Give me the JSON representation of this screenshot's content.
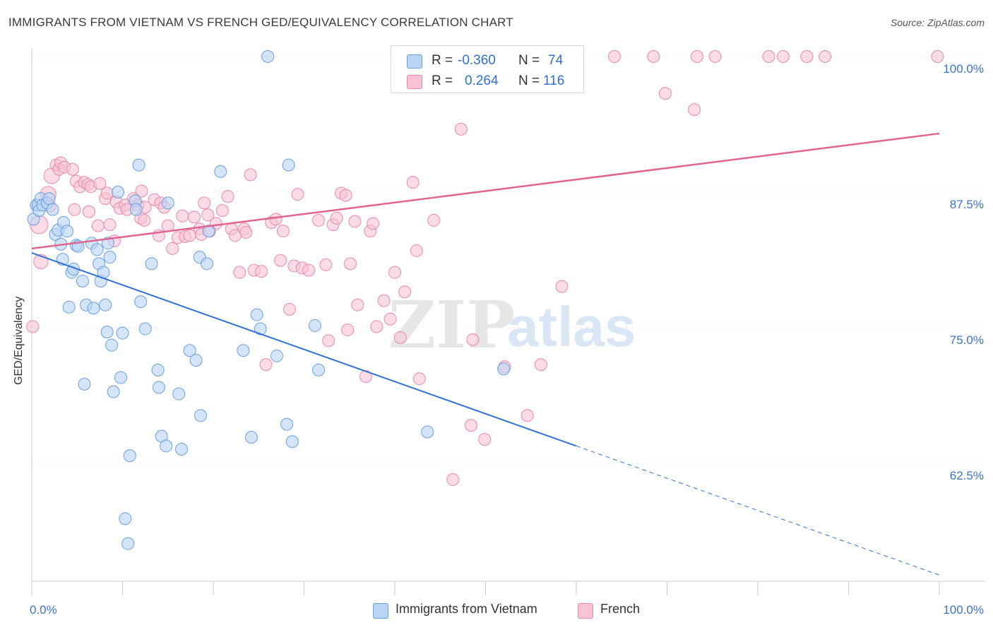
{
  "title": "IMMIGRANTS FROM VIETNAM VS FRENCH GED/EQUIVALENCY CORRELATION CHART",
  "source": "Source: ZipAtlas.com",
  "watermark": {
    "zip": "ZIP",
    "atlas": "atlas"
  },
  "colors": {
    "blue_fill": "#b9d4f5",
    "blue_stroke": "#6a9fdf",
    "blue_line": "#2f72d4",
    "pink_fill": "#f8c3d3",
    "pink_stroke": "#e98aa8",
    "pink_line": "#e0648e",
    "tick_label": "#3a74c8",
    "grid": "#e3e3e3"
  },
  "legend": {
    "rows": [
      {
        "r_label": "R =",
        "r_value": "-0.360",
        "n_label": "N =",
        "n_value": "74",
        "color": "#b9d4f5",
        "border": "#6a9fdf"
      },
      {
        "r_label": "R =",
        "r_value": "0.264",
        "n_label": "N =",
        "n_value": "116",
        "color": "#f8c3d3",
        "border": "#e98aa8"
      }
    ]
  },
  "bottom_legend": [
    {
      "label": "Immigrants from Vietnam",
      "color": "#b9d4f5",
      "border": "#6a9fdf"
    },
    {
      "label": "French",
      "color": "#f8c3d3",
      "border": "#e98aa8"
    }
  ],
  "chart_data": {
    "type": "scatter",
    "title": "IMMIGRANTS FROM VIETNAM VS FRENCH GED/EQUIVALENCY CORRELATION CHART",
    "xlabel": "",
    "ylabel": "GED/Equivalency",
    "xlim": [
      0,
      100
    ],
    "ylim": [
      52,
      100.5
    ],
    "x_tick_labels": [
      "0.0%",
      "100.0%"
    ],
    "y_ticks": [
      100.0,
      87.5,
      75.0,
      62.5
    ],
    "y_tick_labels": [
      "100.0%",
      "87.5%",
      "75.0%",
      "62.5%"
    ],
    "grid": "horizontal dashed",
    "legend_position": "top-center",
    "series": [
      {
        "name": "Immigrants from Vietnam",
        "trend": {
          "x0": 0,
          "y0": 81.9,
          "x1": 60,
          "y1": 64.1,
          "dashed_to_x": 100,
          "dashed_to_y": 52.2
        },
        "points": [
          [
            0.2,
            85.0,
            1
          ],
          [
            0.5,
            86.3,
            1
          ],
          [
            0.7,
            86.3,
            1
          ],
          [
            0.8,
            85.8,
            1
          ],
          [
            1.0,
            86.9,
            1
          ],
          [
            1.2,
            86.3,
            1
          ],
          [
            1.7,
            86.5,
            1
          ],
          [
            1.9,
            86.9,
            1
          ],
          [
            2.3,
            85.9,
            1
          ],
          [
            2.6,
            83.6,
            1
          ],
          [
            2.9,
            84.0,
            1
          ],
          [
            3.2,
            82.7,
            1
          ],
          [
            3.4,
            81.3,
            1
          ],
          [
            3.5,
            84.7,
            1
          ],
          [
            3.9,
            83.9,
            1
          ],
          [
            4.1,
            76.9,
            1
          ],
          [
            4.4,
            80.1,
            1
          ],
          [
            4.6,
            80.4,
            1
          ],
          [
            4.9,
            82.6,
            1
          ],
          [
            5.1,
            82.5,
            1
          ],
          [
            5.6,
            79.3,
            1
          ],
          [
            5.8,
            69.8,
            1
          ],
          [
            6.0,
            77.1,
            1
          ],
          [
            6.6,
            82.8,
            1
          ],
          [
            6.8,
            76.8,
            1
          ],
          [
            7.2,
            82.2,
            1
          ],
          [
            7.4,
            80.9,
            1
          ],
          [
            7.6,
            79.3,
            1
          ],
          [
            7.9,
            80.1,
            1
          ],
          [
            8.1,
            77.1,
            1
          ],
          [
            8.4,
            82.8,
            1
          ],
          [
            8.6,
            81.5,
            1
          ],
          [
            8.8,
            73.4,
            1
          ],
          [
            9.0,
            69.1,
            1
          ],
          [
            9.5,
            87.5,
            1
          ],
          [
            9.8,
            70.4,
            1
          ],
          [
            10.0,
            74.5,
            1
          ],
          [
            10.3,
            57.4,
            1
          ],
          [
            10.6,
            55.1,
            1
          ],
          [
            10.8,
            63.2,
            1
          ],
          [
            11.4,
            86.7,
            1
          ],
          [
            11.5,
            85.9,
            1
          ],
          [
            11.8,
            90.0,
            1
          ],
          [
            12.0,
            77.4,
            1
          ],
          [
            12.5,
            74.9,
            1
          ],
          [
            13.2,
            80.9,
            1
          ],
          [
            13.9,
            71.1,
            1
          ],
          [
            14.0,
            69.5,
            1
          ],
          [
            14.3,
            65.0,
            1
          ],
          [
            14.8,
            64.1,
            1
          ],
          [
            15.0,
            86.5,
            1
          ],
          [
            16.2,
            68.9,
            1
          ],
          [
            16.5,
            63.8,
            1
          ],
          [
            17.4,
            72.9,
            1
          ],
          [
            18.1,
            72.0,
            1
          ],
          [
            18.5,
            81.5,
            1
          ],
          [
            18.6,
            66.9,
            1
          ],
          [
            19.3,
            80.9,
            1
          ],
          [
            19.5,
            83.9,
            1
          ],
          [
            20.8,
            89.4,
            1
          ],
          [
            23.3,
            72.9,
            1
          ],
          [
            24.2,
            64.9,
            1
          ],
          [
            24.8,
            76.2,
            1
          ],
          [
            25.2,
            74.9,
            1
          ],
          [
            26.0,
            100.0,
            1
          ],
          [
            27.0,
            72.4,
            1
          ],
          [
            28.1,
            66.1,
            1
          ],
          [
            28.3,
            90.0,
            1
          ],
          [
            28.7,
            64.5,
            1
          ],
          [
            31.2,
            75.2,
            1
          ],
          [
            31.6,
            71.1,
            1
          ],
          [
            43.6,
            65.4,
            1
          ],
          [
            52.0,
            71.2,
            1
          ],
          [
            8.3,
            74.6,
            1
          ]
        ]
      },
      {
        "name": "French",
        "trend": {
          "x0": 0,
          "y0": 82.3,
          "x1": 100,
          "y1": 92.9
        },
        "points": [
          [
            0.1,
            75.1,
            1
          ],
          [
            0.8,
            84.5,
            1.5
          ],
          [
            1.0,
            81.1,
            1.2
          ],
          [
            1.8,
            87.3,
            1.3
          ],
          [
            2.0,
            86.2,
            1
          ],
          [
            2.2,
            89.0,
            1.3
          ],
          [
            2.7,
            90.0,
            1
          ],
          [
            3.0,
            89.6,
            1
          ],
          [
            3.2,
            90.2,
            1
          ],
          [
            3.6,
            89.8,
            1
          ],
          [
            4.5,
            89.6,
            1
          ],
          [
            4.7,
            85.9,
            1
          ],
          [
            4.9,
            88.5,
            1
          ],
          [
            5.3,
            88.0,
            1
          ],
          [
            5.8,
            88.4,
            1
          ],
          [
            6.2,
            88.2,
            1
          ],
          [
            6.3,
            85.7,
            1
          ],
          [
            6.5,
            88.0,
            1
          ],
          [
            7.3,
            84.4,
            1
          ],
          [
            7.5,
            88.3,
            1
          ],
          [
            8.1,
            86.9,
            1
          ],
          [
            8.3,
            87.4,
            1
          ],
          [
            8.6,
            84.5,
            1
          ],
          [
            9.1,
            83.0,
            1
          ],
          [
            9.3,
            86.6,
            1
          ],
          [
            9.7,
            86.0,
            1
          ],
          [
            10.3,
            86.3,
            1
          ],
          [
            10.5,
            85.9,
            1
          ],
          [
            11.2,
            86.9,
            1
          ],
          [
            11.7,
            86.3,
            1
          ],
          [
            12.0,
            85.1,
            1
          ],
          [
            12.1,
            87.6,
            1
          ],
          [
            12.4,
            84.9,
            1
          ],
          [
            12.5,
            86.1,
            1
          ],
          [
            13.5,
            86.8,
            1
          ],
          [
            14.0,
            83.5,
            1
          ],
          [
            14.2,
            86.5,
            1
          ],
          [
            14.6,
            86.1,
            1
          ],
          [
            15.0,
            84.4,
            1
          ],
          [
            15.5,
            82.3,
            1
          ],
          [
            16.1,
            83.3,
            1
          ],
          [
            16.6,
            85.3,
            1
          ],
          [
            16.9,
            83.4,
            1
          ],
          [
            17.4,
            83.5,
            1
          ],
          [
            17.9,
            85.2,
            1
          ],
          [
            18.5,
            84.1,
            1
          ],
          [
            18.7,
            83.6,
            1
          ],
          [
            19.0,
            86.5,
            1
          ],
          [
            19.4,
            85.4,
            1
          ],
          [
            19.6,
            83.9,
            1
          ],
          [
            20.3,
            84.6,
            1
          ],
          [
            21.0,
            85.8,
            1
          ],
          [
            21.6,
            87.1,
            1
          ],
          [
            22.0,
            84.1,
            1
          ],
          [
            22.4,
            83.5,
            1
          ],
          [
            22.9,
            80.1,
            1
          ],
          [
            23.4,
            84.1,
            1
          ],
          [
            23.6,
            83.8,
            1
          ],
          [
            24.1,
            89.1,
            1
          ],
          [
            24.5,
            80.3,
            1
          ],
          [
            25.3,
            80.2,
            1
          ],
          [
            25.8,
            71.6,
            1
          ],
          [
            26.4,
            84.7,
            1
          ],
          [
            26.9,
            85.0,
            1
          ],
          [
            27.4,
            81.2,
            1
          ],
          [
            27.7,
            83.9,
            1
          ],
          [
            28.4,
            76.7,
            1
          ],
          [
            28.9,
            80.7,
            1
          ],
          [
            29.3,
            87.3,
            1
          ],
          [
            29.8,
            80.5,
            1
          ],
          [
            30.5,
            80.3,
            1
          ],
          [
            31.6,
            84.9,
            1
          ],
          [
            32.4,
            80.8,
            1
          ],
          [
            32.7,
            73.8,
            1
          ],
          [
            33.2,
            84.5,
            1
          ],
          [
            33.6,
            85.1,
            1
          ],
          [
            34.1,
            87.4,
            1
          ],
          [
            34.6,
            87.2,
            1
          ],
          [
            34.8,
            74.8,
            1
          ],
          [
            35.1,
            80.9,
            1
          ],
          [
            35.6,
            84.8,
            1
          ],
          [
            35.9,
            77.1,
            1
          ],
          [
            36.8,
            70.5,
            1
          ],
          [
            37.3,
            83.9,
            1
          ],
          [
            37.6,
            84.6,
            1
          ],
          [
            38.0,
            75.1,
            1
          ],
          [
            38.8,
            77.5,
            1
          ],
          [
            39.5,
            75.8,
            1
          ],
          [
            40.0,
            80.1,
            1
          ],
          [
            40.6,
            74.1,
            1
          ],
          [
            41.1,
            78.3,
            1
          ],
          [
            42.0,
            88.4,
            1
          ],
          [
            42.4,
            82.1,
            1
          ],
          [
            42.7,
            70.3,
            1
          ],
          [
            44.3,
            84.9,
            1
          ],
          [
            46.0,
            100.0,
            1
          ],
          [
            46.4,
            61.0,
            1
          ],
          [
            47.3,
            93.3,
            1
          ],
          [
            48.4,
            66.0,
            1
          ],
          [
            48.6,
            73.9,
            1
          ],
          [
            49.9,
            64.7,
            1
          ],
          [
            52.1,
            71.4,
            1
          ],
          [
            54.6,
            66.9,
            1
          ],
          [
            56.1,
            71.6,
            1
          ],
          [
            58.4,
            78.8,
            1
          ],
          [
            64.2,
            100.0,
            1
          ],
          [
            68.5,
            100.0,
            1
          ],
          [
            69.8,
            96.6,
            1
          ],
          [
            73.0,
            95.1,
            1
          ],
          [
            73.3,
            100.0,
            1
          ],
          [
            75.3,
            100.0,
            1
          ],
          [
            81.2,
            100.0,
            1
          ],
          [
            82.8,
            100.0,
            1
          ],
          [
            85.4,
            100.0,
            1
          ],
          [
            87.4,
            100.0,
            1
          ],
          [
            99.8,
            100.0,
            1
          ]
        ]
      }
    ]
  }
}
